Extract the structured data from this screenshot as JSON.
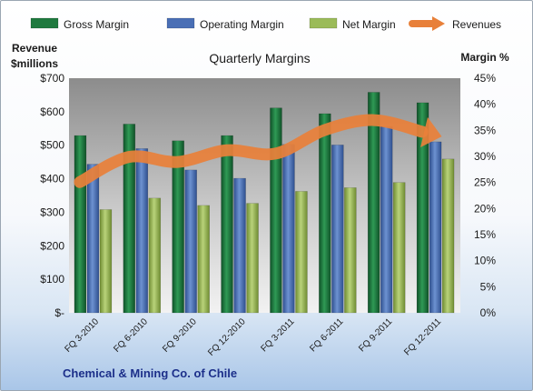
{
  "chart_data": {
    "type": "bar+line",
    "title": "Quarterly Margins",
    "company": "Chemical & Mining Co. of Chile",
    "y_left_label": [
      "Revenue",
      "$millions"
    ],
    "y_right_label": "Margin %",
    "y_left_ticks": [
      "$700",
      "$600",
      "$500",
      "$400",
      "$300",
      "$200",
      "$100",
      "$-"
    ],
    "y_right_ticks": [
      "45%",
      "40%",
      "35%",
      "30%",
      "25%",
      "20%",
      "15%",
      "10%",
      "5%",
      "0%"
    ],
    "y_left_range": [
      0,
      700
    ],
    "y_right_range": [
      0,
      45
    ],
    "categories": [
      "FQ 3-2010",
      "FQ 6-2010",
      "FQ 9-2010",
      "FQ 12-2010",
      "FQ 3-2011",
      "FQ 6-2011",
      "FQ 9-2011",
      "FQ 12-2011"
    ],
    "series": [
      {
        "name": "Gross Margin",
        "axis": "right",
        "kind": "bar",
        "color": "#1f7a3f",
        "values": [
          34.0,
          36.2,
          33.0,
          34.0,
          39.3,
          38.2,
          42.3,
          40.3
        ]
      },
      {
        "name": "Operating Margin",
        "axis": "right",
        "kind": "bar",
        "color": "#4a6fb5",
        "values": [
          28.5,
          31.5,
          27.4,
          25.8,
          32.3,
          32.2,
          35.7,
          32.8
        ]
      },
      {
        "name": "Net Margin",
        "axis": "right",
        "kind": "bar",
        "color": "#9bbb59",
        "values": [
          19.8,
          22.0,
          20.6,
          21.0,
          23.3,
          24.0,
          25.0,
          29.5
        ]
      },
      {
        "name": "Revenues",
        "axis": "left",
        "kind": "line",
        "color": "#e8803a",
        "values": [
          390,
          465,
          450,
          485,
          475,
          545,
          575,
          540
        ]
      }
    ],
    "legend_position": "top",
    "grid": false
  }
}
